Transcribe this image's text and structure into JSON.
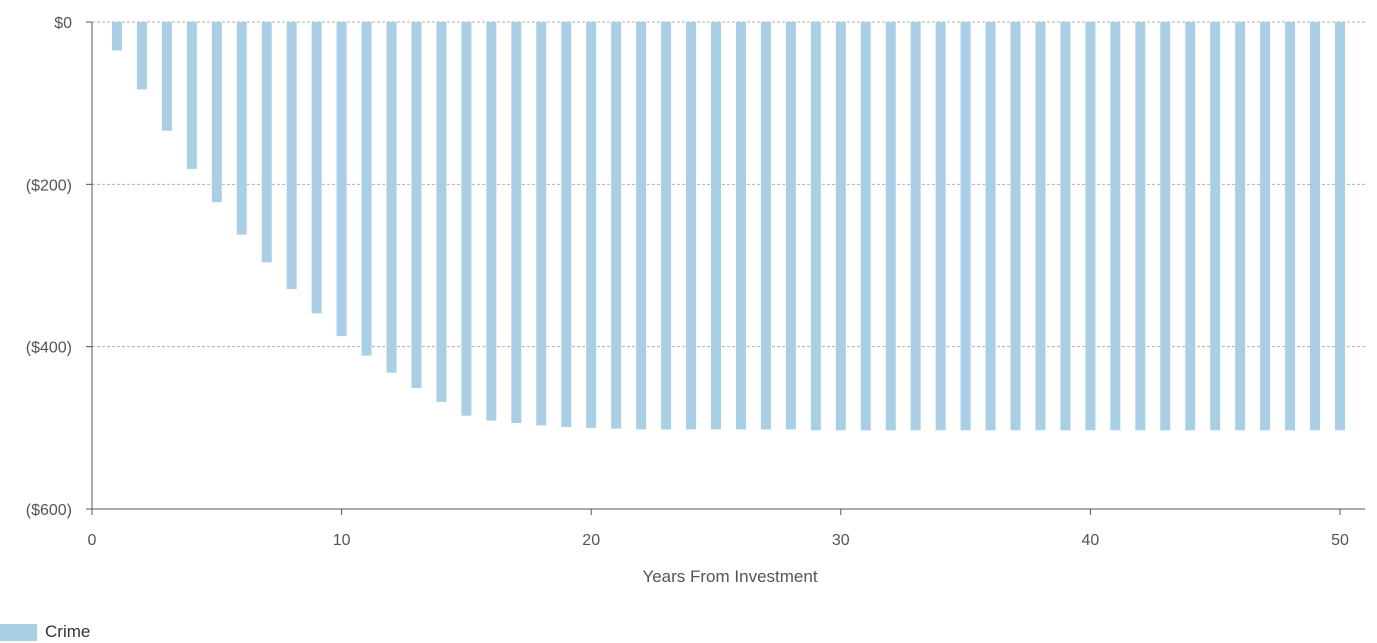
{
  "chart_data": {
    "type": "bar",
    "xlabel": "Years From Investment",
    "ylabel": "",
    "ylim": [
      -600,
      0
    ],
    "xlim": [
      0,
      50
    ],
    "y_ticks": [
      {
        "value": 0,
        "label": "$0"
      },
      {
        "value": -200,
        "label": "($200)"
      },
      {
        "value": -400,
        "label": "($400)"
      },
      {
        "value": -600,
        "label": "($600)"
      }
    ],
    "x_ticks": [
      {
        "value": 0,
        "label": "0"
      },
      {
        "value": 10,
        "label": "10"
      },
      {
        "value": 20,
        "label": "20"
      },
      {
        "value": 30,
        "label": "30"
      },
      {
        "value": 40,
        "label": "40"
      },
      {
        "value": 50,
        "label": "50"
      }
    ],
    "grid": "horizontal-dashed",
    "legend_position": "bottom-left",
    "series": [
      {
        "name": "Crime",
        "color": "#a8cfe3",
        "x": [
          1,
          2,
          3,
          4,
          5,
          6,
          7,
          8,
          9,
          10,
          11,
          12,
          13,
          14,
          15,
          16,
          17,
          18,
          19,
          20,
          21,
          22,
          23,
          24,
          25,
          26,
          27,
          28,
          29,
          30,
          31,
          32,
          33,
          34,
          35,
          36,
          37,
          38,
          39,
          40,
          41,
          42,
          43,
          44,
          45,
          46,
          47,
          48,
          49,
          50
        ],
        "values": [
          -35,
          -83,
          -134,
          -181,
          -222,
          -262,
          -296,
          -329,
          -359,
          -387,
          -411,
          -432,
          -451,
          -468,
          -485,
          -491,
          -494,
          -497,
          -499,
          -500,
          -501,
          -502,
          -502,
          -502,
          -502,
          -502,
          -502,
          -502,
          -503,
          -503,
          -503,
          -503,
          -503,
          -503,
          -503,
          -503,
          -503,
          -503,
          -503,
          -503,
          -503,
          -503,
          -503,
          -503,
          -503,
          -503,
          -503,
          -503,
          -503,
          -503
        ]
      }
    ]
  },
  "legend": {
    "items": [
      {
        "label": "Crime",
        "color": "#a8cfe3"
      }
    ]
  }
}
